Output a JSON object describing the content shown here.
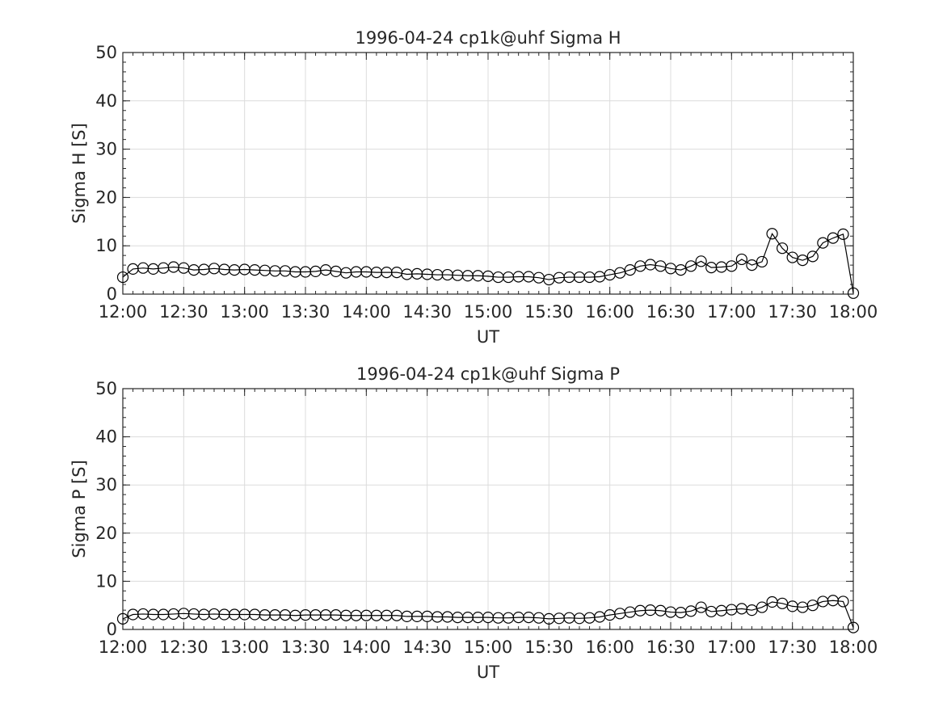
{
  "chart_data": [
    {
      "type": "line",
      "title": "1996-04-24  cp1k@uhf Sigma H",
      "xlabel": "UT",
      "ylabel": "Sigma H [S]",
      "ylim": [
        0,
        50
      ],
      "yticks": [
        0,
        10,
        20,
        30,
        40,
        50
      ],
      "xlim": [
        "12:00",
        "18:00"
      ],
      "xticks": [
        "12:00",
        "12:30",
        "13:00",
        "13:30",
        "14:00",
        "14:30",
        "15:00",
        "15:30",
        "16:00",
        "16:30",
        "17:00",
        "17:30",
        "18:00"
      ],
      "grid": true,
      "x": [
        "12:00",
        "12:05",
        "12:10",
        "12:15",
        "12:20",
        "12:25",
        "12:30",
        "12:35",
        "12:40",
        "12:45",
        "12:50",
        "12:55",
        "13:00",
        "13:05",
        "13:10",
        "13:15",
        "13:20",
        "13:25",
        "13:30",
        "13:35",
        "13:40",
        "13:45",
        "13:50",
        "13:55",
        "14:00",
        "14:05",
        "14:10",
        "14:15",
        "14:20",
        "14:25",
        "14:30",
        "14:35",
        "14:40",
        "14:45",
        "14:50",
        "14:55",
        "15:00",
        "15:05",
        "15:10",
        "15:15",
        "15:20",
        "15:25",
        "15:30",
        "15:35",
        "15:40",
        "15:45",
        "15:50",
        "15:55",
        "16:00",
        "16:05",
        "16:10",
        "16:15",
        "16:20",
        "16:25",
        "16:30",
        "16:35",
        "16:40",
        "16:45",
        "16:50",
        "16:55",
        "17:00",
        "17:05",
        "17:10",
        "17:15",
        "17:20",
        "17:25",
        "17:30",
        "17:35",
        "17:40",
        "17:45",
        "17:50",
        "17:55",
        "18:00"
      ],
      "values": [
        3.5,
        5.2,
        5.4,
        5.2,
        5.4,
        5.6,
        5.4,
        5.0,
        5.1,
        5.3,
        5.1,
        5.0,
        5.1,
        5.0,
        4.9,
        4.8,
        4.8,
        4.6,
        4.6,
        4.7,
        5.0,
        4.7,
        4.4,
        4.6,
        4.6,
        4.5,
        4.5,
        4.5,
        4.1,
        4.2,
        4.1,
        4.0,
        4.0,
        3.9,
        3.8,
        3.8,
        3.7,
        3.5,
        3.5,
        3.6,
        3.6,
        3.4,
        3.0,
        3.4,
        3.5,
        3.5,
        3.5,
        3.6,
        4.0,
        4.4,
        5.0,
        5.8,
        6.1,
        5.8,
        5.3,
        5.0,
        5.8,
        6.8,
        5.5,
        5.6,
        5.8,
        7.2,
        6.0,
        6.7,
        12.5,
        9.5,
        7.6,
        7.0,
        7.8,
        10.6,
        11.6,
        12.4,
        0.2
      ]
    },
    {
      "type": "line",
      "title": "1996-04-24  cp1k@uhf Sigma P",
      "xlabel": "UT",
      "ylabel": "Sigma P [S]",
      "ylim": [
        0,
        50
      ],
      "yticks": [
        0,
        10,
        20,
        30,
        40,
        50
      ],
      "xlim": [
        "12:00",
        "18:00"
      ],
      "xticks": [
        "12:00",
        "12:30",
        "13:00",
        "13:30",
        "14:00",
        "14:30",
        "15:00",
        "15:30",
        "16:00",
        "16:30",
        "17:00",
        "17:30",
        "18:00"
      ],
      "grid": true,
      "x": [
        "12:00",
        "12:05",
        "12:10",
        "12:15",
        "12:20",
        "12:25",
        "12:30",
        "12:35",
        "12:40",
        "12:45",
        "12:50",
        "12:55",
        "13:00",
        "13:05",
        "13:10",
        "13:15",
        "13:20",
        "13:25",
        "13:30",
        "13:35",
        "13:40",
        "13:45",
        "13:50",
        "13:55",
        "14:00",
        "14:05",
        "14:10",
        "14:15",
        "14:20",
        "14:25",
        "14:30",
        "14:35",
        "14:40",
        "14:45",
        "14:50",
        "14:55",
        "15:00",
        "15:05",
        "15:10",
        "15:15",
        "15:20",
        "15:25",
        "15:30",
        "15:35",
        "15:40",
        "15:45",
        "15:50",
        "15:55",
        "16:00",
        "16:05",
        "16:10",
        "16:15",
        "16:20",
        "16:25",
        "16:30",
        "16:35",
        "16:40",
        "16:45",
        "16:50",
        "16:55",
        "17:00",
        "17:05",
        "17:10",
        "17:15",
        "17:20",
        "17:25",
        "17:30",
        "17:35",
        "17:40",
        "17:45",
        "17:50",
        "17:55",
        "18:00"
      ],
      "values": [
        2.2,
        3.1,
        3.2,
        3.1,
        3.1,
        3.2,
        3.3,
        3.2,
        3.1,
        3.2,
        3.1,
        3.1,
        3.1,
        3.1,
        3.0,
        3.0,
        3.0,
        2.9,
        3.0,
        3.0,
        3.0,
        3.0,
        2.9,
        2.9,
        2.9,
        2.9,
        2.9,
        2.9,
        2.7,
        2.7,
        2.7,
        2.6,
        2.6,
        2.5,
        2.5,
        2.5,
        2.5,
        2.4,
        2.4,
        2.5,
        2.5,
        2.4,
        2.2,
        2.3,
        2.4,
        2.3,
        2.4,
        2.6,
        3.0,
        3.3,
        3.6,
        3.9,
        4.0,
        3.9,
        3.6,
        3.5,
        3.8,
        4.6,
        3.7,
        3.9,
        4.1,
        4.3,
        4.0,
        4.6,
        5.7,
        5.4,
        4.8,
        4.6,
        5.0,
        5.8,
        6.0,
        5.8,
        0.4
      ]
    }
  ]
}
